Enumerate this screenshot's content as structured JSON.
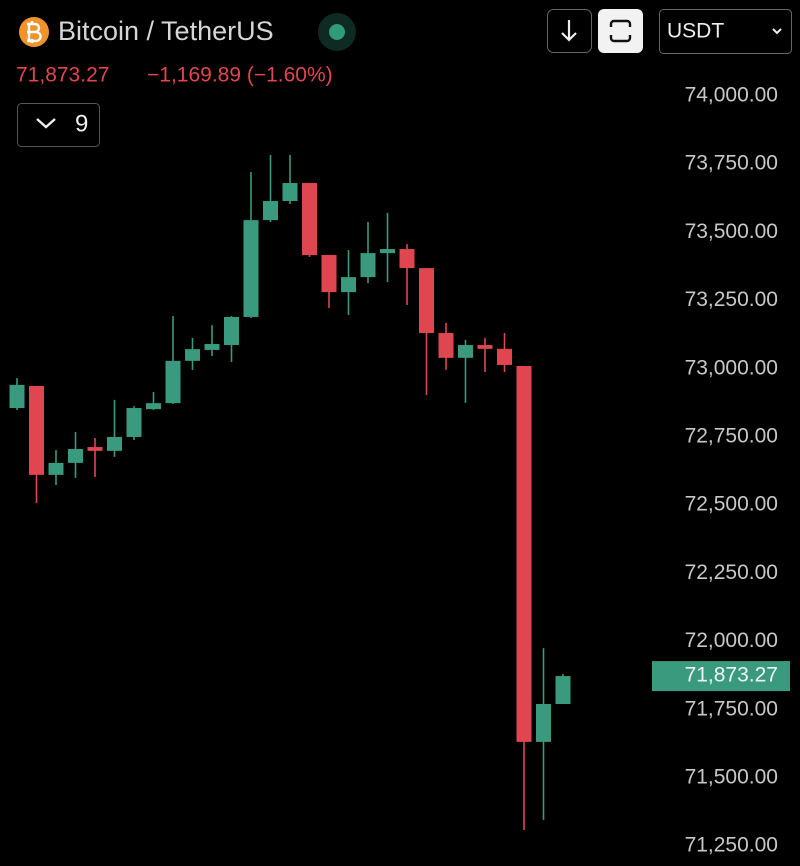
{
  "header": {
    "title": "Bitcoin / TetherUS",
    "price": "71,873.27",
    "change": "−1,169.89 (−1.60%)",
    "indicator_count": "9",
    "currency": "USDT"
  },
  "chart_data": {
    "type": "candlestick",
    "up_color": "#3a9a7e",
    "down_color": "#e0464f",
    "ylim": [
      71177,
      74352
    ],
    "yticks": [
      {
        "value": 71250,
        "label": "71,250.00"
      },
      {
        "value": 71500,
        "label": "71,500.00"
      },
      {
        "value": 71750,
        "label": "71,750.00"
      },
      {
        "value": 72000,
        "label": "72,000.00"
      },
      {
        "value": 72250,
        "label": "72,250.00"
      },
      {
        "value": 72500,
        "label": "72,500.00"
      },
      {
        "value": 72750,
        "label": "72,750.00"
      },
      {
        "value": 73000,
        "label": "73,000.00"
      },
      {
        "value": 73250,
        "label": "73,250.00"
      },
      {
        "value": 73500,
        "label": "73,500.00"
      },
      {
        "value": 73750,
        "label": "73,750.00"
      },
      {
        "value": 74000,
        "label": "74,000.00"
      }
    ],
    "last_price": {
      "value": 71873.27,
      "label": "71,873.27"
    },
    "open": [
      72856,
      72937,
      72611,
      72655,
      72713,
      72699,
      72750,
      72852,
      72874,
      73029,
      73069,
      73087,
      73190,
      73545,
      73615,
      73681,
      73417,
      73281,
      73336,
      73424,
      73439,
      73369,
      73131,
      73040,
      73087,
      73073,
      73010,
      71632,
      71771
    ],
    "high": [
      72966,
      72937,
      72702,
      72768,
      72746,
      72886,
      72863,
      72915,
      73193,
      73113,
      73160,
      73193,
      73721,
      73784,
      73784,
      73681,
      73417,
      73435,
      73538,
      73571,
      73457,
      73369,
      73168,
      73106,
      73113,
      73131,
      73010,
      71976,
      71881
    ],
    "low": [
      72849,
      72508,
      72574,
      72600,
      72603,
      72677,
      72739,
      72849,
      72871,
      72996,
      73047,
      73025,
      73186,
      73538,
      73604,
      73410,
      73223,
      73197,
      73314,
      73318,
      73234,
      72904,
      72996,
      72875,
      72988,
      72988,
      71309,
      71346,
      71771
    ],
    "close": [
      72941,
      72611,
      72655,
      72706,
      72699,
      72750,
      72856,
      72874,
      73029,
      73072,
      73091,
      73190,
      73545,
      73615,
      73681,
      73417,
      73281,
      73336,
      73424,
      73439,
      73369,
      73131,
      73040,
      73087,
      73073,
      73014,
      71632,
      71771,
      71873.27
    ]
  }
}
